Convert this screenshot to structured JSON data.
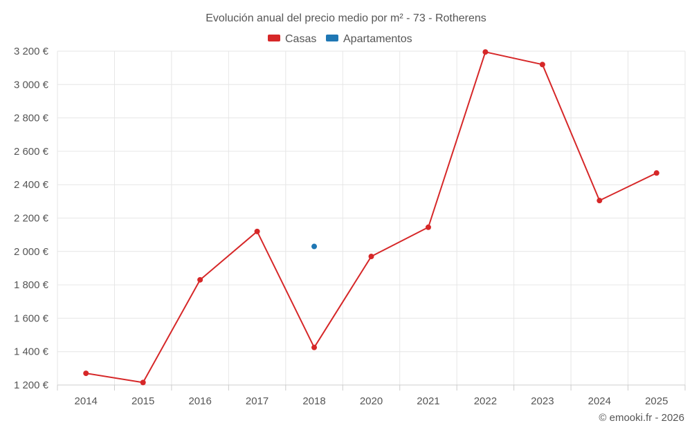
{
  "chart_data": {
    "type": "line",
    "title": "Evolución anual del precio medio por m² - 73 - Rotherens",
    "categories": [
      "2014",
      "2015",
      "2016",
      "2017",
      "2018",
      "2020",
      "2021",
      "2022",
      "2023",
      "2024",
      "2025"
    ],
    "ylim": [
      1200,
      3200
    ],
    "yticks": [
      1200,
      1400,
      1600,
      1800,
      2000,
      2200,
      2400,
      2600,
      2800,
      3000,
      3200
    ],
    "ytick_labels": [
      "1 200 €",
      "1 400 €",
      "1 600 €",
      "1 800 €",
      "2 000 €",
      "2 200 €",
      "2 400 €",
      "2 600 €",
      "2 800 €",
      "3 000 €",
      "3 200 €"
    ],
    "grid": true,
    "legend_position": "top-center",
    "series": [
      {
        "name": "Casas",
        "color": "#d62728",
        "values": [
          1270,
          1215,
          1830,
          2120,
          1425,
          1970,
          2145,
          3195,
          3120,
          2305,
          2470
        ]
      },
      {
        "name": "Apartamentos",
        "color": "#1f77b4",
        "values": [
          null,
          null,
          null,
          null,
          2030,
          null,
          null,
          null,
          null,
          null,
          null
        ]
      }
    ]
  },
  "credit": "© emooki.fr - 2026"
}
